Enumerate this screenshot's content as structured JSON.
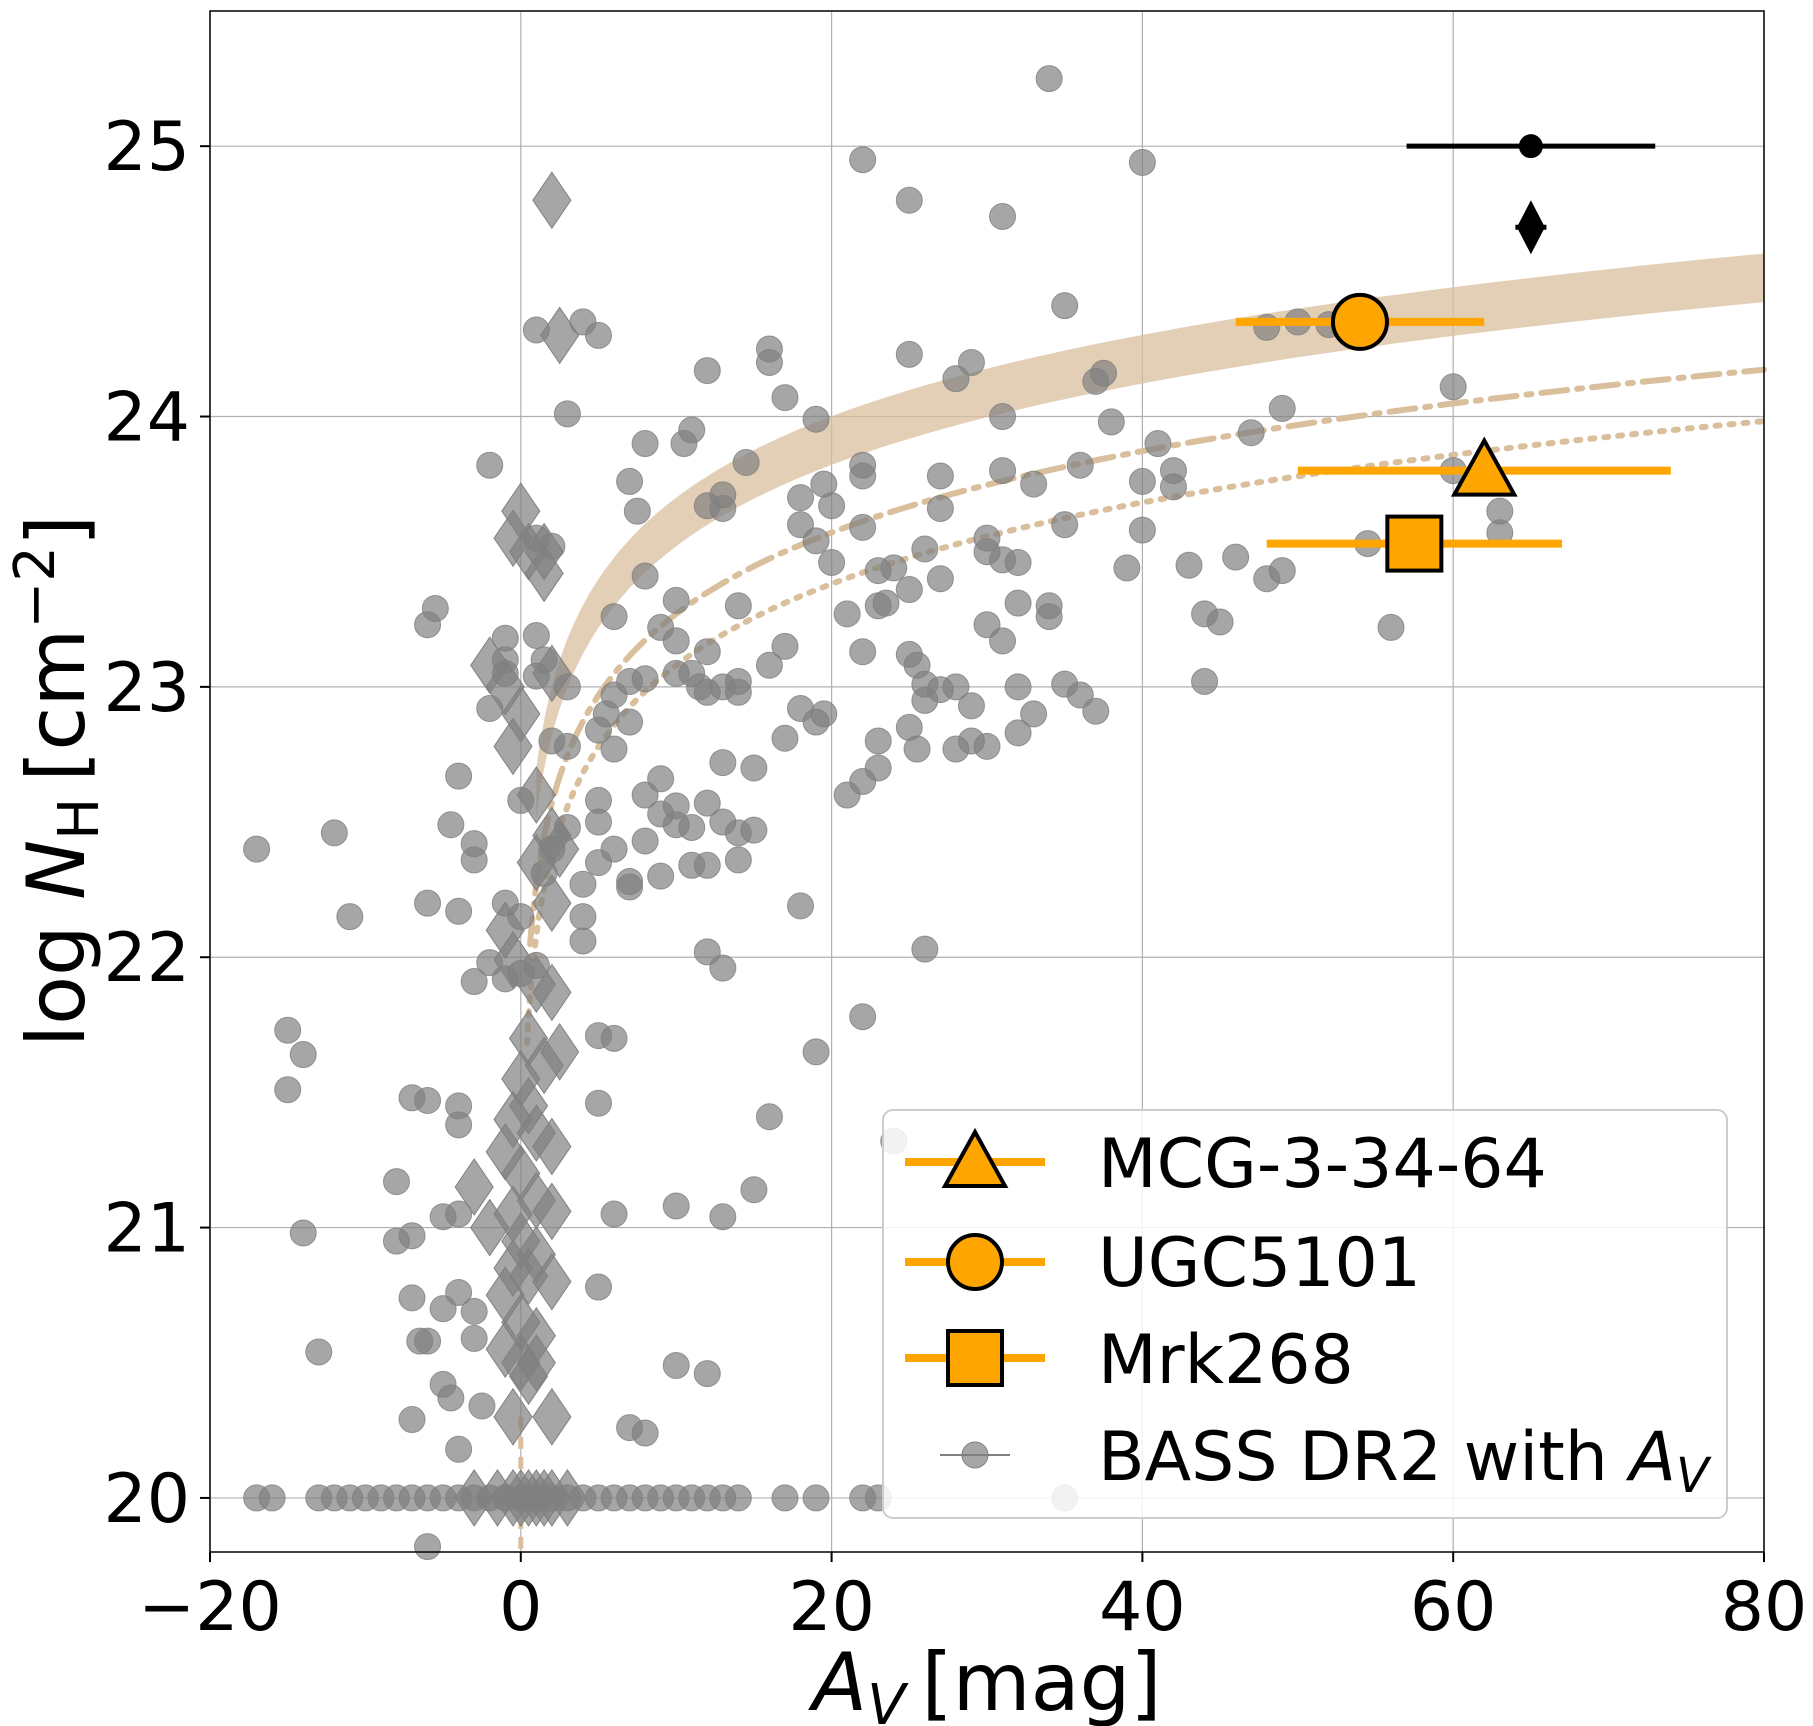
{
  "chart_data": {
    "type": "scatter",
    "title": "",
    "xlabel": {
      "symbol": "A",
      "subscript": "V",
      "unit": "[mag]"
    },
    "ylabel": {
      "prefix": "log ",
      "symbol": "N",
      "subscript": "H",
      "unit": "[cm",
      "exponent": "−2",
      "close": "]"
    },
    "xlim": [
      -20,
      80
    ],
    "ylim": [
      19.8,
      25.5
    ],
    "xticks": [
      -20,
      0,
      20,
      40,
      60,
      80
    ],
    "xtick_labels": [
      "−20",
      "0",
      "20",
      "40",
      "60",
      "80"
    ],
    "yticks": [
      20,
      21,
      22,
      23,
      24,
      25
    ],
    "ytick_labels": [
      "20",
      "21",
      "22",
      "23",
      "24",
      "25"
    ],
    "grid": true,
    "legend": {
      "placement": "lower-right",
      "entries": [
        {
          "label": "MCG-3-34-64",
          "marker": "triangle"
        },
        {
          "label": "UGC5101",
          "marker": "circle"
        },
        {
          "label": "Mrk268",
          "marker": "square"
        },
        {
          "label_prefix": "BASS DR2 with ",
          "symbol": "A",
          "subscript": "V",
          "marker": "small-circle"
        }
      ]
    },
    "colors": {
      "highlight": "#FFA500",
      "errorbar": "#FFA500",
      "bass": "#808080",
      "relation": "#D9BF9C",
      "reference": "#000000"
    },
    "highlighted_sources": [
      {
        "name": "MCG-3-34-64",
        "marker": "triangle",
        "x": 62,
        "y": 23.8,
        "xerr": [
          50,
          74
        ]
      },
      {
        "name": "UGC5101",
        "marker": "circle",
        "x": 54,
        "y": 24.35,
        "xerr": [
          46,
          62
        ]
      },
      {
        "name": "Mrk268",
        "marker": "square",
        "x": 57.5,
        "y": 23.53,
        "xerr": [
          48,
          67
        ]
      }
    ],
    "reference_points": [
      {
        "marker": "circle",
        "x": 65,
        "y": 25.0,
        "xerr": [
          57,
          73
        ]
      },
      {
        "marker": "diamond",
        "x": 65,
        "y": 24.7,
        "xerr": [
          64,
          66
        ]
      }
    ],
    "relations": [
      {
        "style": "band",
        "label": "",
        "coef_low": 22.52,
        "coef_high": 22.7,
        "xmin": 1
      },
      {
        "style": "dashdot",
        "label": "",
        "coef": 22.27,
        "xmin": 0.6
      },
      {
        "style": "dotted",
        "label": "",
        "coef": 22.08,
        "xmin": 0.4
      }
    ],
    "bass_circles": [
      [
        -17,
        22.4
      ],
      [
        -12,
        22.46
      ],
      [
        -11,
        22.15
      ],
      [
        -15,
        21.73
      ],
      [
        -14,
        21.64
      ],
      [
        -15,
        21.51
      ],
      [
        -14,
        20.98
      ],
      [
        -13,
        20.54
      ],
      [
        -6,
        23.23
      ],
      [
        -5.5,
        23.29
      ],
      [
        -7,
        21.48
      ],
      [
        -8,
        21.17
      ],
      [
        -8,
        20.95
      ],
      [
        -7,
        20.97
      ],
      [
        -7,
        20.74
      ],
      [
        -6,
        20.58
      ],
      [
        -6.5,
        20.58
      ],
      [
        -5,
        20.42
      ],
      [
        -4.5,
        20.37
      ],
      [
        -4,
        20.18
      ],
      [
        -7,
        20.29
      ],
      [
        -6,
        22.2
      ],
      [
        -4,
        22.17
      ],
      [
        -3,
        22.36
      ],
      [
        -3,
        22.42
      ],
      [
        -2,
        21.98
      ],
      [
        -4,
        22.67
      ],
      [
        -4.5,
        22.49
      ],
      [
        -2,
        23.82
      ],
      [
        -3,
        21.91
      ],
      [
        -4,
        21.45
      ],
      [
        -4,
        21.38
      ],
      [
        -5,
        21.04
      ],
      [
        -4,
        21.05
      ],
      [
        -3,
        20.69
      ],
      [
        -3,
        20.59
      ],
      [
        -2.5,
        20.34
      ],
      [
        -4,
        20.76
      ],
      [
        -6,
        21.47
      ],
      [
        -5,
        20.7
      ],
      [
        1,
        24.32
      ],
      [
        4,
        24.35
      ],
      [
        5,
        24.3
      ],
      [
        3,
        24.01
      ],
      [
        1.5,
        23.1
      ],
      [
        1,
        23.04
      ],
      [
        2,
        22.8
      ],
      [
        3,
        22.78
      ],
      [
        5,
        22.84
      ],
      [
        6,
        22.77
      ],
      [
        3,
        23.0
      ],
      [
        1.5,
        22.31
      ],
      [
        2,
        22.4
      ],
      [
        3,
        22.48
      ],
      [
        4,
        22.27
      ],
      [
        4,
        22.15
      ],
      [
        5,
        22.58
      ],
      [
        5,
        22.5
      ],
      [
        5.5,
        22.9
      ],
      [
        6,
        22.97
      ],
      [
        7,
        22.87
      ],
      [
        8,
        22.6
      ],
      [
        8,
        22.43
      ],
      [
        9,
        22.66
      ],
      [
        9,
        22.53
      ],
      [
        10,
        22.56
      ],
      [
        11,
        22.48
      ],
      [
        12,
        22.34
      ],
      [
        10,
        22.49
      ],
      [
        9,
        22.3
      ],
      [
        7,
        22.26
      ],
      [
        7,
        22.28
      ],
      [
        6,
        22.4
      ],
      [
        5,
        22.35
      ],
      [
        4,
        22.06
      ],
      [
        6,
        23.26
      ],
      [
        7,
        23.02
      ],
      [
        8,
        23.41
      ],
      [
        9,
        23.22
      ],
      [
        10,
        23.17
      ],
      [
        11,
        23.05
      ],
      [
        12,
        22.98
      ],
      [
        12,
        23.13
      ],
      [
        13,
        23.0
      ],
      [
        14,
        22.98
      ],
      [
        14,
        23.3
      ],
      [
        13,
        22.72
      ],
      [
        12,
        22.57
      ],
      [
        13,
        22.5
      ],
      [
        14,
        22.46
      ],
      [
        15,
        22.7
      ],
      [
        15,
        22.47
      ],
      [
        14,
        22.36
      ],
      [
        11,
        22.34
      ],
      [
        12,
        22.02
      ],
      [
        13,
        21.96
      ],
      [
        8,
        23.03
      ],
      [
        8,
        23.9
      ],
      [
        7,
        23.76
      ],
      [
        7.5,
        23.65
      ],
      [
        10,
        23.32
      ],
      [
        10,
        23.05
      ],
      [
        11.5,
        23.0
      ],
      [
        10.5,
        23.9
      ],
      [
        11,
        23.95
      ],
      [
        12,
        24.17
      ],
      [
        13,
        23.71
      ],
      [
        12,
        23.67
      ],
      [
        13,
        23.66
      ],
      [
        14,
        23.02
      ],
      [
        14.5,
        23.83
      ],
      [
        16,
        24.25
      ],
      [
        16,
        24.2
      ],
      [
        17,
        24.07
      ],
      [
        16,
        23.08
      ],
      [
        17,
        23.15
      ],
      [
        17,
        22.81
      ],
      [
        18,
        22.92
      ],
      [
        18,
        23.7
      ],
      [
        19,
        23.99
      ],
      [
        18,
        23.6
      ],
      [
        19,
        23.54
      ],
      [
        19.5,
        23.75
      ],
      [
        20,
        23.67
      ],
      [
        19,
        22.87
      ],
      [
        19.5,
        22.9
      ],
      [
        20,
        23.46
      ],
      [
        21,
        23.27
      ],
      [
        22,
        23.82
      ],
      [
        22,
        23.78
      ],
      [
        22,
        23.59
      ],
      [
        23,
        23.3
      ],
      [
        22,
        23.13
      ],
      [
        23,
        23.43
      ],
      [
        23.5,
        23.31
      ],
      [
        21,
        22.6
      ],
      [
        22,
        22.65
      ],
      [
        23,
        22.7
      ],
      [
        23,
        22.8
      ],
      [
        25,
        23.36
      ],
      [
        24,
        23.44
      ],
      [
        25,
        23.12
      ],
      [
        25.5,
        23.08
      ],
      [
        26,
        23.01
      ],
      [
        25,
        22.85
      ],
      [
        25.5,
        22.77
      ],
      [
        26,
        22.95
      ],
      [
        27,
        22.99
      ],
      [
        28,
        23.0
      ],
      [
        29,
        22.93
      ],
      [
        28,
        22.77
      ],
      [
        29,
        22.8
      ],
      [
        30,
        22.78
      ],
      [
        27,
        23.66
      ],
      [
        27,
        23.78
      ],
      [
        26,
        23.51
      ],
      [
        27,
        23.4
      ],
      [
        25,
        24.23
      ],
      [
        28,
        24.14
      ],
      [
        29,
        24.2
      ],
      [
        30,
        23.5
      ],
      [
        31,
        23.47
      ],
      [
        30,
        23.55
      ],
      [
        31,
        23.8
      ],
      [
        32,
        23.46
      ],
      [
        30,
        23.23
      ],
      [
        31,
        23.17
      ],
      [
        32,
        23.0
      ],
      [
        33,
        22.9
      ],
      [
        32,
        22.83
      ],
      [
        31,
        24.0
      ],
      [
        32,
        23.31
      ],
      [
        33,
        23.75
      ],
      [
        34,
        23.26
      ],
      [
        34,
        23.3
      ],
      [
        35,
        23.01
      ],
      [
        36,
        22.97
      ],
      [
        37,
        22.91
      ],
      [
        35,
        23.6
      ],
      [
        36,
        23.82
      ],
      [
        37,
        24.13
      ],
      [
        37.5,
        24.16
      ],
      [
        38,
        23.98
      ],
      [
        39,
        23.44
      ],
      [
        40,
        23.58
      ],
      [
        40,
        23.76
      ],
      [
        41,
        23.9
      ],
      [
        42,
        23.8
      ],
      [
        42,
        23.74
      ],
      [
        43,
        23.45
      ],
      [
        44,
        23.02
      ],
      [
        44,
        23.27
      ],
      [
        45,
        23.24
      ],
      [
        46,
        23.48
      ],
      [
        47,
        23.94
      ],
      [
        48,
        23.4
      ],
      [
        48,
        24.33
      ],
      [
        49,
        24.03
      ],
      [
        49,
        23.43
      ],
      [
        50,
        24.35
      ],
      [
        52,
        24.34
      ],
      [
        54.5,
        23.53
      ],
      [
        56,
        23.22
      ],
      [
        60,
        24.11
      ],
      [
        60,
        23.8
      ],
      [
        63,
        23.57
      ],
      [
        63,
        23.65
      ],
      [
        22,
        24.95
      ],
      [
        25,
        24.8
      ],
      [
        31,
        24.74
      ],
      [
        34,
        25.25
      ],
      [
        35,
        24.41
      ],
      [
        40,
        24.94
      ],
      [
        19,
        21.65
      ],
      [
        22,
        21.78
      ],
      [
        26,
        22.03
      ],
      [
        18,
        22.19
      ],
      [
        16,
        21.41
      ],
      [
        15,
        21.14
      ],
      [
        13,
        21.04
      ],
      [
        10,
        21.08
      ],
      [
        10,
        20.49
      ],
      [
        12,
        20.46
      ],
      [
        8,
        20.24
      ],
      [
        7,
        20.26
      ],
      [
        5,
        20.78
      ],
      [
        6,
        21.05
      ],
      [
        5,
        21.46
      ],
      [
        5,
        21.71
      ],
      [
        6,
        21.7
      ],
      [
        24,
        21.32
      ],
      [
        2,
        23.52
      ],
      [
        1,
        23.19
      ],
      [
        1,
        23.55
      ],
      [
        -1,
        23.05
      ],
      [
        -1,
        23.18
      ],
      [
        -1,
        23.1
      ],
      [
        -2,
        22.92
      ],
      [
        0,
        22.58
      ],
      [
        -1,
        22.2
      ],
      [
        0,
        22.15
      ],
      [
        1,
        21.97
      ],
      [
        -1,
        21.92
      ],
      [
        0,
        21.94
      ],
      [
        -6,
        19.82
      ],
      [
        -17,
        20.0
      ],
      [
        -16,
        20.0
      ],
      [
        -13,
        20.0
      ],
      [
        -12,
        20.0
      ],
      [
        -11,
        20.0
      ],
      [
        -10,
        20.0
      ],
      [
        -9,
        20.0
      ],
      [
        -8,
        20.0
      ],
      [
        -7,
        20.0
      ],
      [
        -6,
        20.0
      ],
      [
        -5,
        20.0
      ],
      [
        -4,
        20.0
      ],
      [
        -3,
        20.0
      ],
      [
        -2,
        20.0
      ],
      [
        -1,
        20.0
      ],
      [
        0,
        20.0
      ],
      [
        1,
        20.0
      ],
      [
        2,
        20.0
      ],
      [
        3,
        20.0
      ],
      [
        4,
        20.0
      ],
      [
        5,
        20.0
      ],
      [
        6,
        20.0
      ],
      [
        7,
        20.0
      ],
      [
        8,
        20.0
      ],
      [
        9,
        20.0
      ],
      [
        10,
        20.0
      ],
      [
        11,
        20.0
      ],
      [
        12,
        20.0
      ],
      [
        13,
        20.0
      ],
      [
        14,
        20.0
      ],
      [
        17,
        20.0
      ],
      [
        19,
        20.0
      ],
      [
        22,
        20.0
      ],
      [
        23,
        20.0
      ],
      [
        35,
        20.0
      ]
    ],
    "bass_diamonds": [
      [
        2,
        24.8
      ],
      [
        2.5,
        24.3
      ],
      [
        0,
        23.65
      ],
      [
        -0.5,
        23.55
      ],
      [
        0.5,
        23.5
      ],
      [
        1.5,
        23.5
      ],
      [
        1.5,
        23.42
      ],
      [
        2,
        23.05
      ],
      [
        -2,
        23.08
      ],
      [
        -1,
        23.0
      ],
      [
        0,
        22.9
      ],
      [
        -0.5,
        22.78
      ],
      [
        1,
        22.6
      ],
      [
        2,
        22.45
      ],
      [
        2.5,
        22.4
      ],
      [
        1,
        22.35
      ],
      [
        2,
        22.2
      ],
      [
        -1,
        22.1
      ],
      [
        -0.5,
        21.99
      ],
      [
        1,
        21.9
      ],
      [
        2,
        21.87
      ],
      [
        0.5,
        21.7
      ],
      [
        2.5,
        21.65
      ],
      [
        1.5,
        21.6
      ],
      [
        0,
        21.55
      ],
      [
        0.5,
        21.45
      ],
      [
        -0.5,
        21.4
      ],
      [
        1,
        21.35
      ],
      [
        2,
        21.3
      ],
      [
        0,
        21.2
      ],
      [
        -1,
        21.28
      ],
      [
        1,
        21.1
      ],
      [
        -0.5,
        21.05
      ],
      [
        2,
        21.06
      ],
      [
        -2,
        21.0
      ],
      [
        -3,
        21.15
      ],
      [
        0,
        20.95
      ],
      [
        1,
        20.9
      ],
      [
        -0.5,
        20.85
      ],
      [
        0.5,
        20.82
      ],
      [
        -1,
        20.75
      ],
      [
        2,
        20.8
      ],
      [
        0,
        20.65
      ],
      [
        1,
        20.6
      ],
      [
        -1,
        20.55
      ],
      [
        0,
        20.5
      ],
      [
        0.5,
        20.45
      ],
      [
        -0.5,
        20.3
      ],
      [
        1,
        20.5
      ],
      [
        2,
        20.3
      ],
      [
        -3,
        20.0
      ],
      [
        -1.5,
        20.0
      ],
      [
        -0.5,
        20.0
      ],
      [
        0,
        20.0
      ],
      [
        0.5,
        20.0
      ],
      [
        1,
        20.0
      ],
      [
        1.5,
        20.0
      ],
      [
        2,
        20.0
      ],
      [
        3,
        20.0
      ]
    ]
  }
}
